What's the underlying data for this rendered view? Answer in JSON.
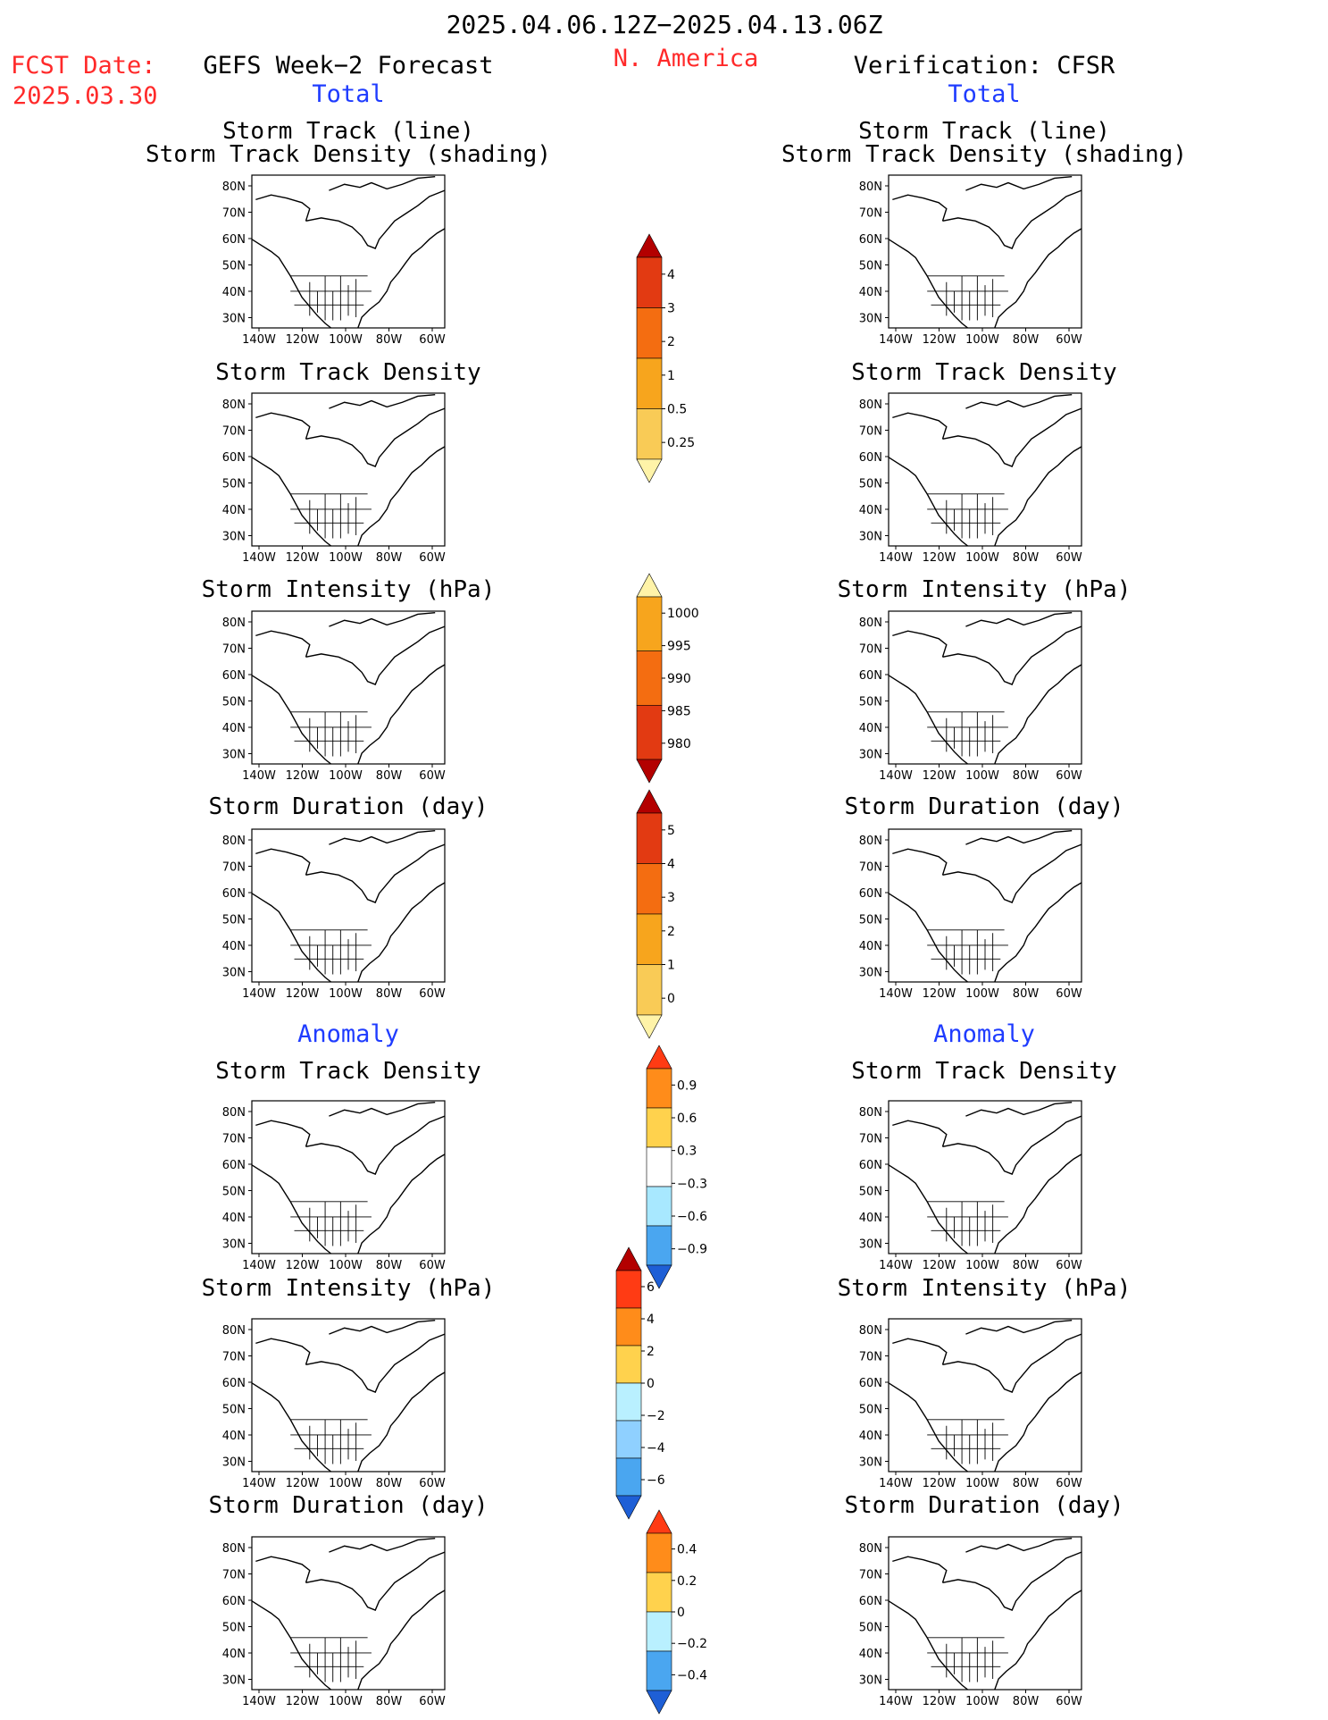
{
  "header": {
    "period": "2025.04.06.12Z−2025.04.13.06Z",
    "region": "N. America",
    "fcst_label": "FCST Date:",
    "fcst_date": "2025.03.30",
    "left_title": "GEFS Week−2 Forecast",
    "right_title": "Verification: CFSR",
    "total_left": "Total",
    "total_right": "Total",
    "anomaly_left": "Anomaly",
    "anomaly_right": "Anomaly"
  },
  "panel_titles": {
    "t1a": "Storm Track (line)",
    "t1b": "Storm Track Density (shading)",
    "t2": "Storm Track Density",
    "t3": "Storm Intensity (hPa)",
    "t4": "Storm Duration (day)",
    "t5": "Storm Track Density",
    "t6": "Storm Intensity (hPa)",
    "t7": "Storm Duration (day)"
  },
  "axes": {
    "lat_labels": [
      "80N",
      "70N",
      "60N",
      "50N",
      "40N",
      "30N"
    ],
    "lon_labels": [
      "140W",
      "120W",
      "100W",
      "80W",
      "60W"
    ]
  },
  "colorbars": {
    "density": {
      "labels": [
        "4",
        "3",
        "2",
        "1",
        "0.5",
        "0.25"
      ],
      "colors": [
        "#b30000",
        "#e23a12",
        "#f46d11",
        "#f7a51d",
        "#f9cb56",
        "#fff3a8"
      ]
    },
    "intensity": {
      "labels": [
        "1000",
        "995",
        "990",
        "985",
        "980"
      ],
      "colors": [
        "#fff3a8",
        "#f7a51d",
        "#f46d11",
        "#e23a12",
        "#b30000"
      ]
    },
    "duration": {
      "labels": [
        "5",
        "4",
        "3",
        "2",
        "1",
        "0"
      ],
      "colors": [
        "#b30000",
        "#e23a12",
        "#f46d11",
        "#f7a51d",
        "#f9cb56",
        "#fff3a8"
      ]
    },
    "anom_density": {
      "labels": [
        "0.9",
        "0.6",
        "0.3",
        "−0.3",
        "−0.6",
        "−0.9"
      ],
      "colors": [
        "#ff3b14",
        "#ff8c1a",
        "#ffd24d",
        "#ffffff",
        "#a8e8ff",
        "#4aa6f0",
        "#1e5fd6"
      ]
    },
    "anom_intensity": {
      "labels": [
        "6",
        "4",
        "2",
        "0",
        "−2",
        "−4",
        "−6"
      ],
      "colors": [
        "#b30000",
        "#ff3b14",
        "#ff8c1a",
        "#ffd24d",
        "#b9f0ff",
        "#8fd0ff",
        "#4aa6f0",
        "#1e5fd6"
      ]
    },
    "anom_duration": {
      "labels": [
        "0.4",
        "0.2",
        "0",
        "−0.2",
        "−0.4"
      ],
      "colors": [
        "#ff3b14",
        "#ff8c1a",
        "#ffd24d",
        "#b9f0ff",
        "#4aa6f0",
        "#1e5fd6"
      ]
    }
  }
}
